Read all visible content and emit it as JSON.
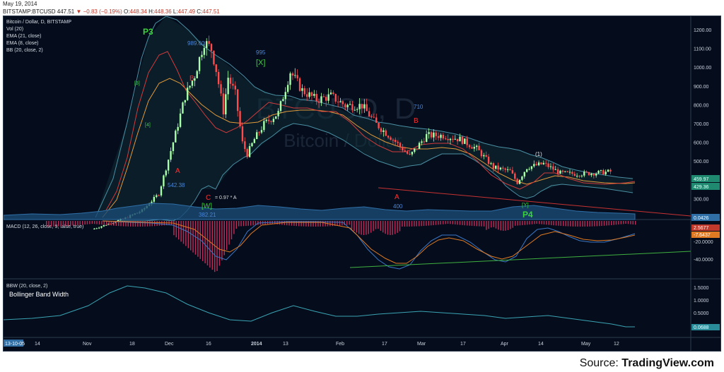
{
  "header": {
    "date": "May 19, 2014",
    "symbol": "BITSTAMP:BTCUSD",
    "last": "447.51",
    "change": "−0.83 (−0.19%)",
    "open": "448.34",
    "high": "448.36",
    "low": "447.49",
    "close": "447.51"
  },
  "legend": {
    "title": "Bitcoin / Dollar, D, BITSTAMP",
    "vol": "Vol (20)",
    "ema21": "EMA (21, close)",
    "ema8": "EMA (8, close)",
    "bb": "BB (20, close, 2)"
  },
  "watermark": {
    "symbol": "BTCUSD, D",
    "name": "Bitcoin / Dollar"
  },
  "macd": {
    "label": "MACD (12, 26, close, 9, false, true)"
  },
  "bbw": {
    "label": "BBW (20, close, 2)",
    "name": "Bollinger Band Width"
  },
  "source": {
    "prefix": "Source: ",
    "site": "TradingView.com"
  },
  "colors": {
    "background": "#050d1c",
    "up": "#a7ffa7",
    "down": "#ff4b4b",
    "bb": "#4a8fa3",
    "ema21": "#e39a3a",
    "ema8": "#d23b3b",
    "macd": "#3b78c7",
    "signal": "#e07a22",
    "bbw": "#3aa3b3",
    "green_label": "#3bd33b",
    "red_label": "#ff3030",
    "blue_label": "#4b86d6"
  },
  "chart_data": {
    "type": "line",
    "x_ticks": [
      "14",
      "Nov",
      "18",
      "Dec",
      "16",
      "2014",
      "13",
      "Feb",
      "17",
      "Mar",
      "17",
      "Apr",
      "14",
      "May",
      "12"
    ],
    "price_axis": {
      "ticks": [
        "1200.00",
        "1100.00",
        "1000.00",
        "900.00",
        "800.00",
        "700.00",
        "600.00",
        "500.00",
        "400.00",
        "300.00"
      ],
      "ylim": [
        250,
        1250
      ],
      "value_tags": [
        "459.97",
        "429.36",
        "0.0426"
      ]
    },
    "price_series": [
      {
        "x": "Oct 14",
        "y": 140
      },
      {
        "x": "Oct 28",
        "y": 200
      },
      {
        "x": "Nov 4",
        "y": 240
      },
      {
        "x": "Nov 11",
        "y": 330
      },
      {
        "x": "Nov 18",
        "y": 650
      },
      {
        "x": "Nov 22",
        "y": 850
      },
      {
        "x": "Nov 26",
        "y": 960
      },
      {
        "x": "Nov 30",
        "y": 1140
      },
      {
        "x": "Dec 3",
        "y": 1100
      },
      {
        "x": "Dec 5",
        "y": 990
      },
      {
        "x": "Dec 8",
        "y": 770
      },
      {
        "x": "Dec 10",
        "y": 950
      },
      {
        "x": "Dec 13",
        "y": 860
      },
      {
        "x": "Dec 16",
        "y": 600
      },
      {
        "x": "Dec 18",
        "y": 540
      },
      {
        "x": "Dec 21",
        "y": 620
      },
      {
        "x": "Dec 25",
        "y": 700
      },
      {
        "x": "Dec 31",
        "y": 760
      },
      {
        "x": "Jan 5",
        "y": 980
      },
      {
        "x": "Jan 10",
        "y": 880
      },
      {
        "x": "Jan 16",
        "y": 830
      },
      {
        "x": "Jan 22",
        "y": 850
      },
      {
        "x": "Jan 28",
        "y": 800
      },
      {
        "x": "Feb 4",
        "y": 800
      },
      {
        "x": "Feb 10",
        "y": 700
      },
      {
        "x": "Feb 17",
        "y": 620
      },
      {
        "x": "Feb 24",
        "y": 530
      },
      {
        "x": "Mar 3",
        "y": 640
      },
      {
        "x": "Mar 10",
        "y": 640
      },
      {
        "x": "Mar 17",
        "y": 620
      },
      {
        "x": "Mar 24",
        "y": 570
      },
      {
        "x": "Mar 31",
        "y": 470
      },
      {
        "x": "Apr 7",
        "y": 450
      },
      {
        "x": "Apr 10",
        "y": 390
      },
      {
        "x": "Apr 14",
        "y": 470
      },
      {
        "x": "Apr 21",
        "y": 490
      },
      {
        "x": "Apr 28",
        "y": 440
      },
      {
        "x": "May 5",
        "y": 435
      },
      {
        "x": "May 12",
        "y": 440
      },
      {
        "x": "May 19",
        "y": 447.51
      }
    ],
    "macd_axis": {
      "ticks": [
        "-20.0000",
        "-40.0000"
      ],
      "value_tags": [
        "2.5677",
        "-7.6437"
      ]
    },
    "bbw_axis": {
      "ticks": [
        "1.5000",
        "1.0000",
        "0.5000"
      ],
      "value_tags": [
        "0.0688"
      ]
    },
    "x_start_tag": "13-10-05",
    "annotations": [
      "P3",
      "989.60",
      "995",
      "[X]",
      "B",
      "[3]",
      "[4]",
      "A",
      "542.38",
      "C",
      "= 0.97 * A",
      "[W]",
      "382.21",
      "710",
      "B",
      "A",
      "400",
      "(1)",
      "[Y]",
      "P4"
    ]
  }
}
